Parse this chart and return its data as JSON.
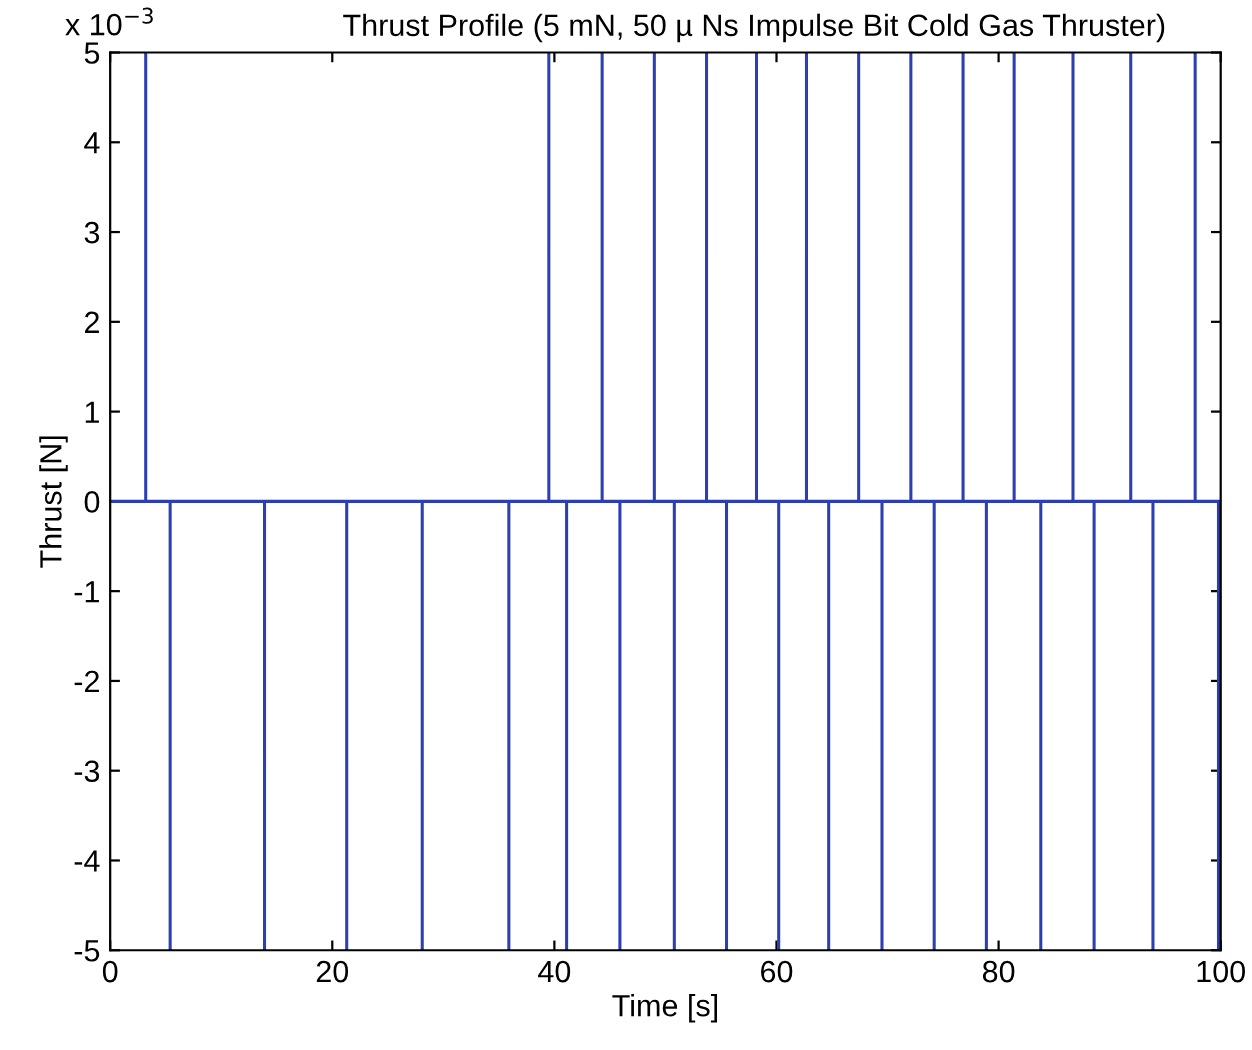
{
  "chart_data": {
    "type": "line",
    "title": "Thrust Profile (5 mN, 50 µ Ns Impulse Bit Cold Gas Thruster)",
    "xlabel": "Time [s]",
    "ylabel": "Thrust [N]",
    "annotations": [
      "x 10$^{−3}$"
    ],
    "series": [
      {
        "color": "#2b3fb3",
        "x": [
          0,
          3.2,
          3.2,
          3.2,
          5.4,
          5.4,
          5.4,
          13.9,
          13.9,
          13.9,
          21.3,
          21.3,
          21.3,
          28.1,
          28.1,
          28.1,
          35.9,
          35.9,
          35.9,
          39.5,
          39.5,
          39.5,
          41.1,
          41.1,
          41.1,
          44.3,
          44.3,
          44.3,
          45.9,
          45.9,
          45.9,
          49.0,
          49.0,
          49.0,
          50.8,
          50.8,
          50.8,
          53.7,
          53.7,
          53.7,
          55.5,
          55.5,
          55.5,
          58.2,
          58.2,
          58.2,
          60.2,
          60.2,
          60.2,
          62.7,
          62.7,
          62.7,
          64.7,
          64.7,
          64.7,
          67.4,
          67.4,
          67.4,
          69.5,
          69.5,
          69.5,
          72.1,
          72.1,
          72.1,
          74.2,
          74.2,
          74.2,
          76.8,
          76.8,
          76.8,
          78.9,
          78.9,
          78.9,
          81.4,
          81.4,
          81.4,
          83.8,
          83.8,
          83.8,
          86.7,
          86.7,
          86.7,
          88.6,
          88.6,
          88.6,
          91.9,
          91.9,
          91.9,
          93.9,
          93.9,
          93.9,
          97.7,
          97.7,
          97.7,
          99.8,
          99.8,
          99.8,
          100
        ],
        "values": [
          0,
          0,
          5,
          0,
          0,
          -5,
          0,
          0,
          -5,
          0,
          0,
          -5,
          0,
          0,
          -5,
          0,
          0,
          -5,
          0,
          0,
          5,
          0,
          0,
          -5,
          0,
          0,
          5,
          0,
          0,
          -5,
          0,
          0,
          5,
          0,
          0,
          -5,
          0,
          0,
          5,
          0,
          0,
          -5,
          0,
          0,
          5,
          0,
          0,
          -5,
          0,
          0,
          5,
          0,
          0,
          -5,
          0,
          0,
          5,
          0,
          0,
          -5,
          0,
          0,
          5,
          0,
          0,
          -5,
          0,
          0,
          5,
          0,
          0,
          -5,
          0,
          0,
          5,
          0,
          0,
          -5,
          0,
          0,
          5,
          0,
          0,
          -5,
          0,
          0,
          5,
          0,
          0,
          -5,
          0,
          0,
          5,
          0,
          0,
          -5,
          0,
          0
        ]
      }
    ],
    "xlim": [
      0,
      100
    ],
    "xticks": [
      0,
      20,
      40,
      60,
      80,
      100
    ],
    "ylim": [
      -5,
      5
    ],
    "yticks": [
      -5,
      -4,
      -3,
      -2,
      -1,
      0,
      1,
      2,
      3,
      4,
      5
    ],
    "grid": false,
    "legend": false,
    "marker": "none",
    "line_style": "solid"
  }
}
